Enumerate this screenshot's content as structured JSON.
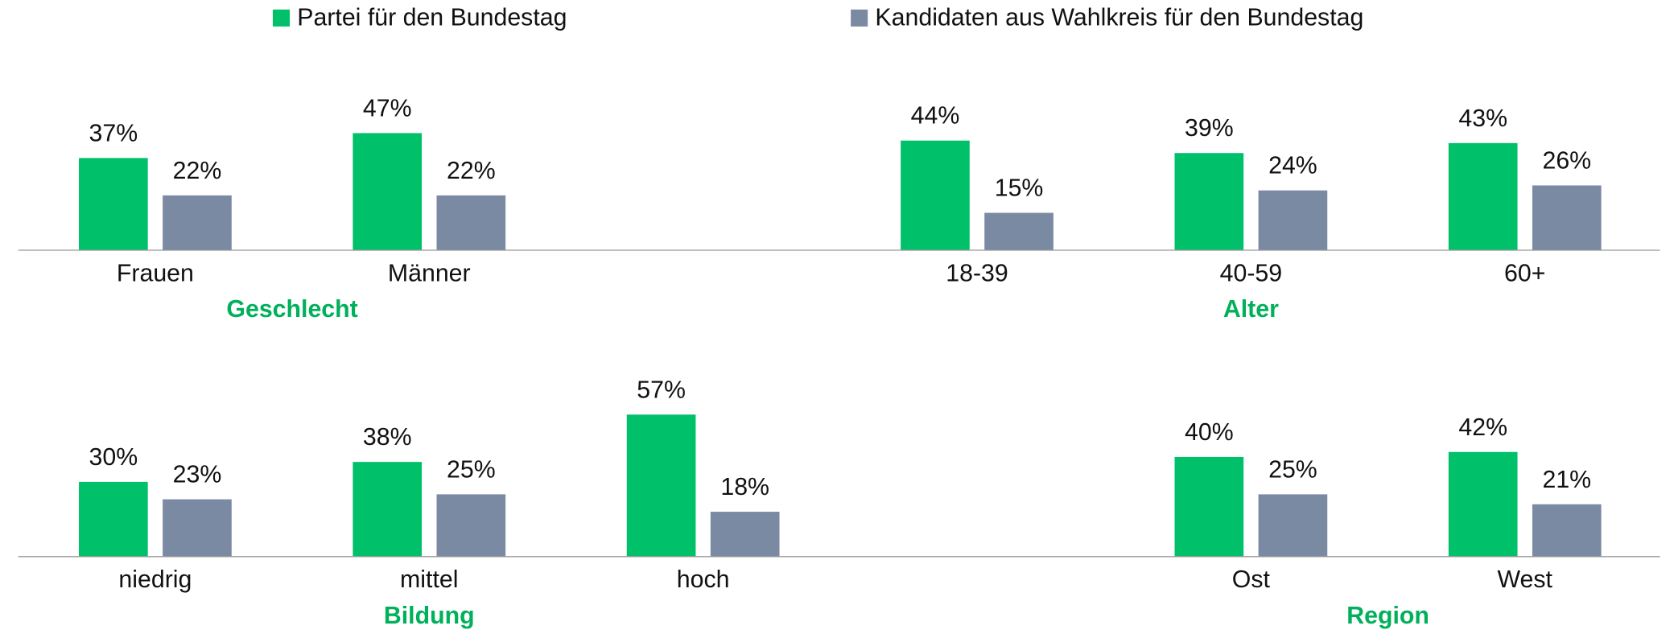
{
  "chart_data": [
    {
      "type": "bar",
      "series": [
        {
          "name": "Partei für den Bundestag",
          "color": "#00c06a",
          "values": [
            37,
            47,
            null,
            44,
            39,
            43
          ],
          "value_labels": [
            "37%",
            "47%",
            null,
            "44%",
            "39%",
            "43%"
          ]
        },
        {
          "name": "Kandidaten aus Wahlkreis für den Bundestag",
          "color": "#7a8aa3",
          "values": [
            22,
            22,
            null,
            15,
            24,
            26
          ],
          "value_labels": [
            "22%",
            "22%",
            null,
            "15%",
            "24%",
            "26%"
          ]
        }
      ],
      "categories": [
        "Frauen",
        "Männer",
        null,
        "18-39",
        "40-59",
        "60+"
      ],
      "groups": [
        {
          "name": "Geschlecht",
          "categories": [
            "Frauen",
            "Männer"
          ]
        },
        {
          "name": "Alter",
          "categories": [
            "18-39",
            "40-59",
            "60+"
          ]
        }
      ],
      "ylim": [
        0,
        100
      ]
    },
    {
      "type": "bar",
      "series": [
        {
          "color": "#00c06a",
          "values": [
            30,
            38,
            57,
            null,
            40,
            42
          ],
          "value_labels": [
            "30%",
            "38%",
            "57%",
            null,
            "40%",
            "42%"
          ]
        },
        {
          "color": "#7a8aa3",
          "values": [
            23,
            25,
            18,
            null,
            25,
            21
          ],
          "value_labels": [
            "23%",
            "25%",
            "18%",
            null,
            "25%",
            "21%"
          ]
        }
      ],
      "categories": [
        "niedrig",
        "mittel",
        "hoch",
        null,
        "Ost",
        "West"
      ],
      "groups": [
        {
          "name": "Bildung",
          "categories": [
            "mittel"
          ]
        },
        {
          "name": "Region",
          "categories": [
            "Ost",
            "West"
          ]
        }
      ],
      "ylim": [
        0,
        100
      ]
    }
  ]
}
